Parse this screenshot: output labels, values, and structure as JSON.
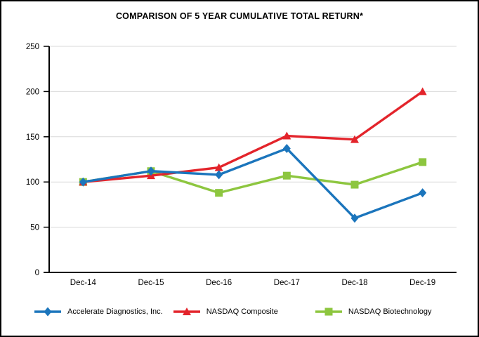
{
  "title": "COMPARISON OF 5 YEAR CUMULATIVE TOTAL RETURN*",
  "chart_data": {
    "type": "line",
    "categories": [
      "Dec-14",
      "Dec-15",
      "Dec-16",
      "Dec-17",
      "Dec-18",
      "Dec-19"
    ],
    "series": [
      {
        "name": "Accelerate Diagnostics, Inc.",
        "marker": "diamond",
        "color": "#1B75BC",
        "values": [
          100,
          112,
          108,
          137,
          60,
          88
        ]
      },
      {
        "name": "NASDAQ Composite",
        "marker": "triangle",
        "color": "#E3242B",
        "values": [
          100,
          107,
          116,
          151,
          147,
          200
        ]
      },
      {
        "name": "NASDAQ Biotechnology",
        "marker": "square",
        "color": "#8DC63F",
        "values": [
          100,
          112,
          88,
          107,
          97,
          122
        ]
      }
    ],
    "ylim": [
      0,
      250
    ],
    "yticks": [
      0,
      50,
      100,
      150,
      200,
      250
    ],
    "grid": true,
    "legend_position": "bottom",
    "xlabel": "",
    "ylabel": ""
  },
  "style": {
    "gridline_color": "#D9D9D9",
    "axis_color": "#000000",
    "background": "#FFFFFF"
  }
}
